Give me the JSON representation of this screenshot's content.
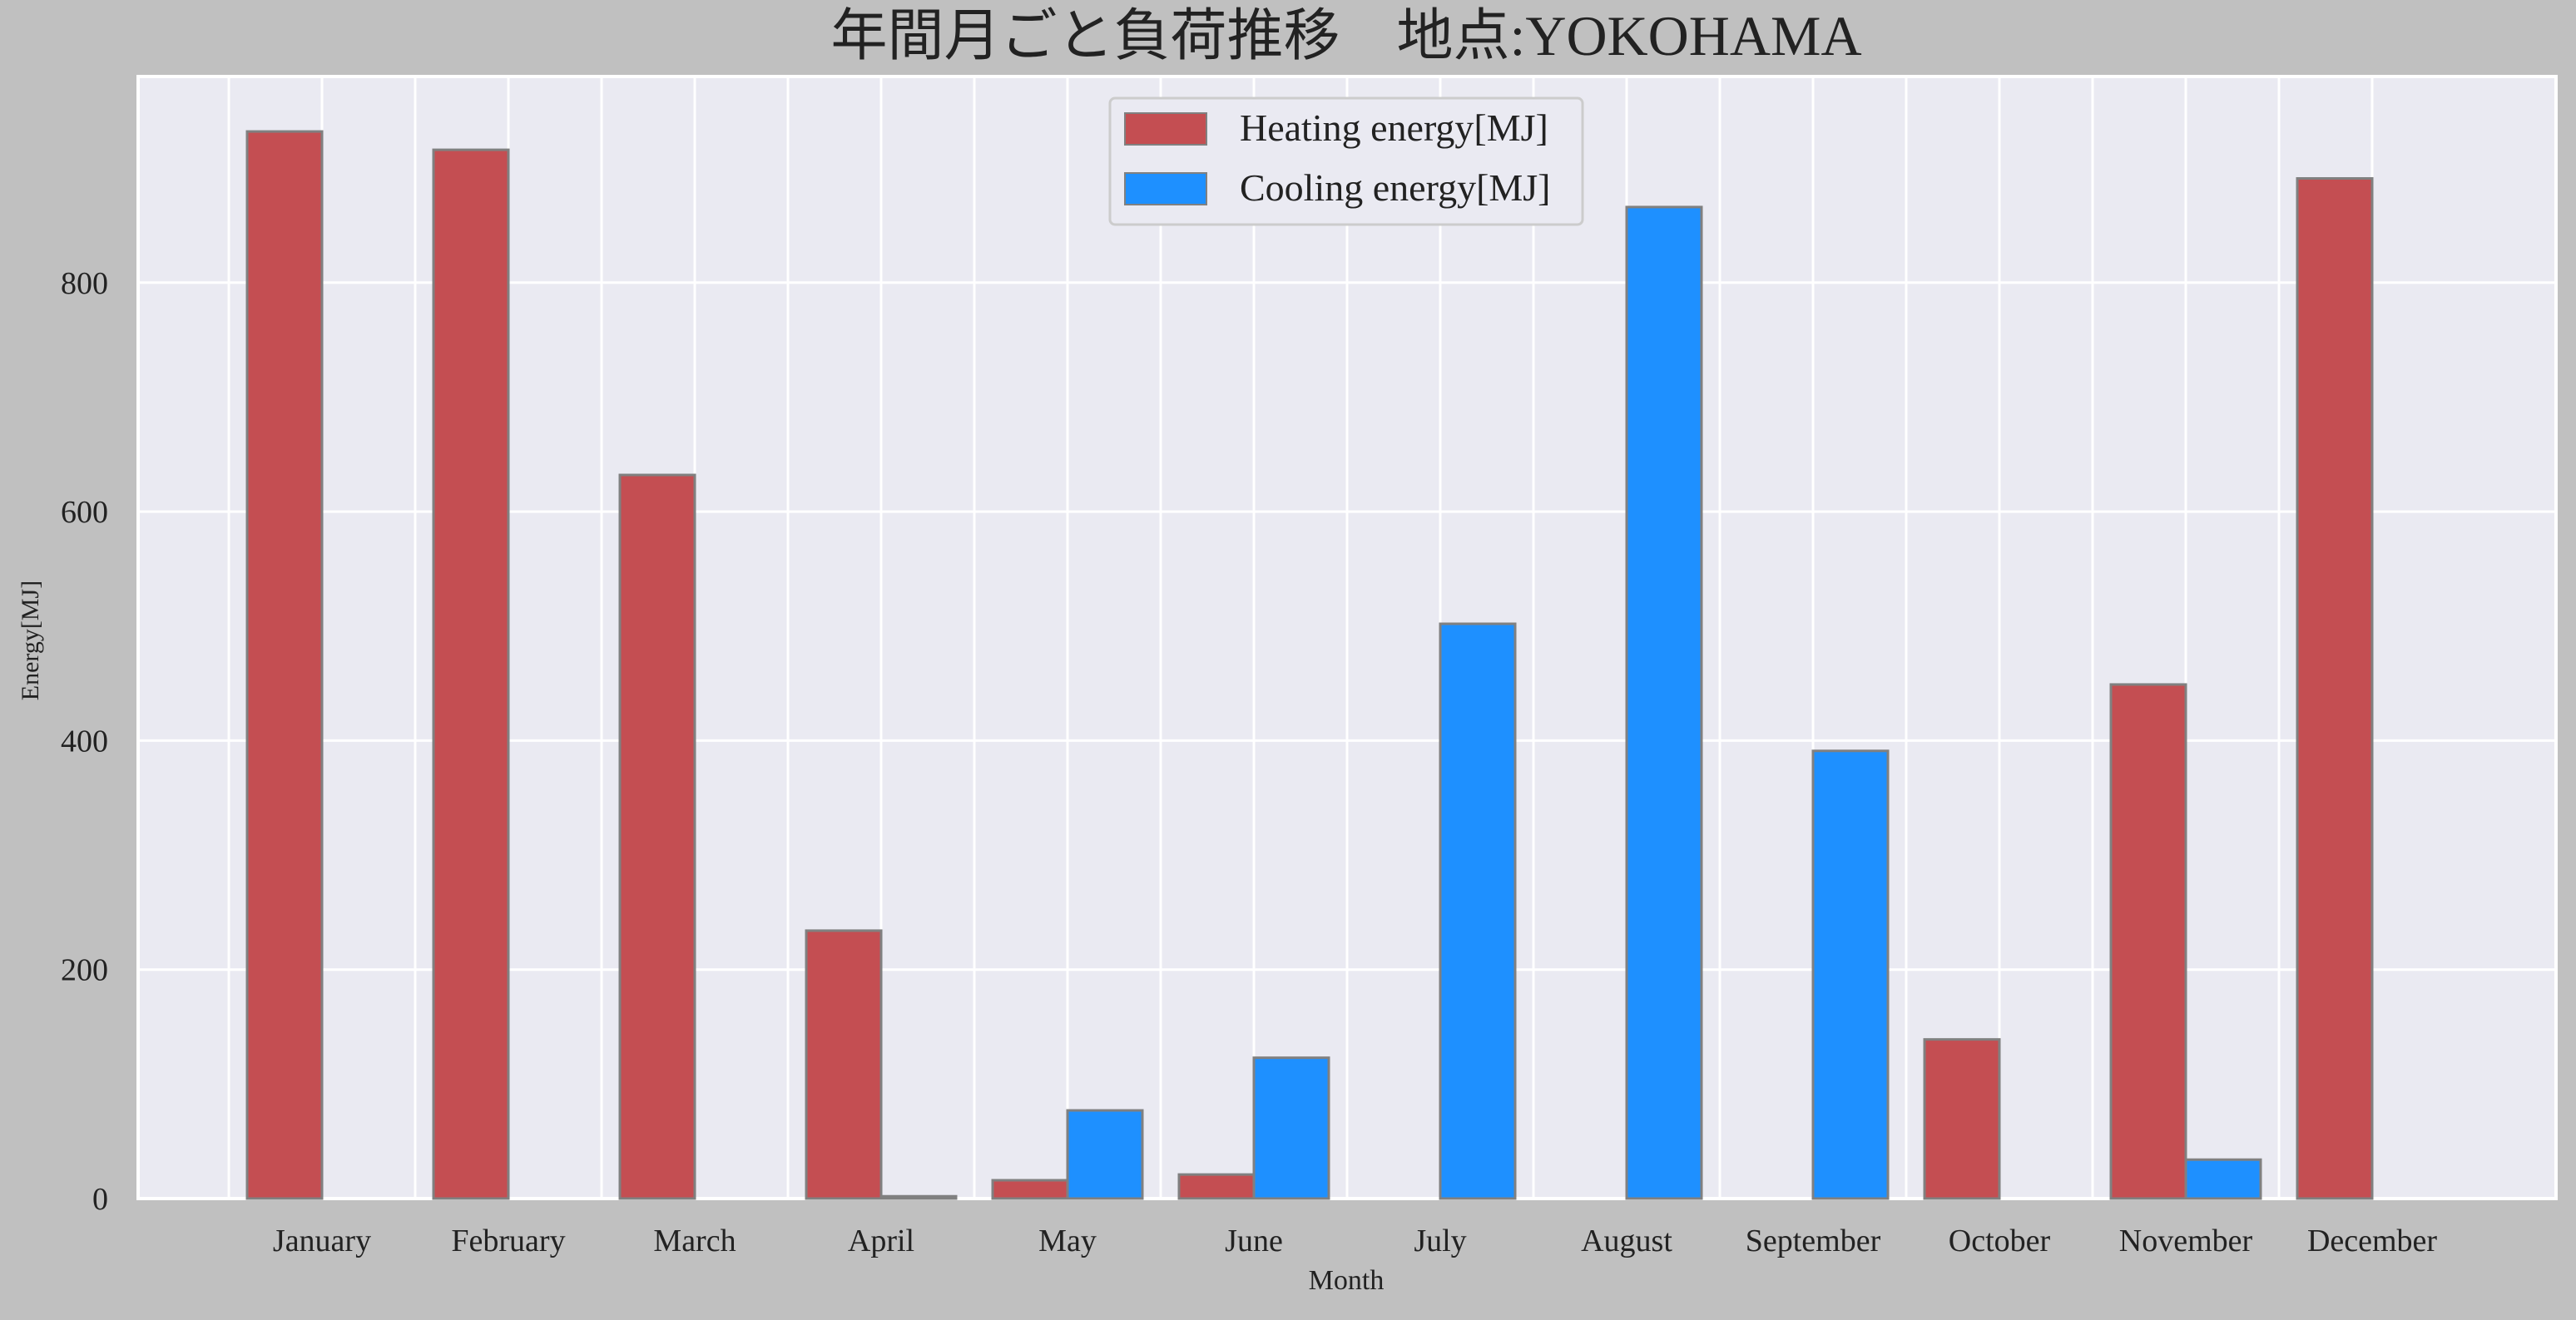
{
  "chart_data": {
    "type": "bar",
    "title": "年間月ごと負荷推移　地点:YOKOHAMA",
    "xlabel": "Month",
    "ylabel": "Energy[MJ]",
    "categories": [
      "January",
      "February",
      "March",
      "April",
      "May",
      "June",
      "July",
      "August",
      "September",
      "October",
      "November",
      "December"
    ],
    "series": [
      {
        "name": "Heating energy[MJ]",
        "color": "#c44e52",
        "values": [
          932,
          916,
          632,
          234,
          16,
          21,
          0,
          0,
          0,
          139,
          449,
          891
        ]
      },
      {
        "name": "Cooling energy[MJ]",
        "color": "#1e90ff",
        "values": [
          0,
          0,
          0,
          2,
          77,
          123,
          502,
          866,
          391,
          0,
          34,
          0
        ]
      }
    ],
    "ylim": [
      0,
      980
    ],
    "yticks": [
      0,
      200,
      400,
      600,
      800
    ],
    "grid": true,
    "legend_position": "upper center",
    "plot_background": "#eaeaf2",
    "figure_background": "#c0c0c0",
    "bar_edge_color": "#808080"
  }
}
